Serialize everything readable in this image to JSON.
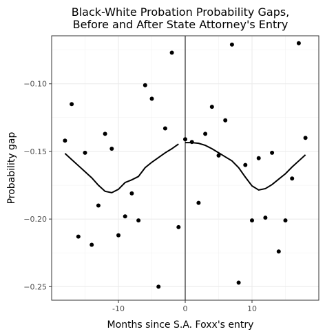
{
  "chart_data": {
    "type": "scatter",
    "title_line1": "Black-White Probation Probability Gaps,",
    "title_line2": "Before and After State Attorney's Entry",
    "xlabel": "Months since S.A. Foxx's entry",
    "ylabel": "Probability gap",
    "xlim": [
      -20,
      20
    ],
    "ylim": [
      -0.26,
      -0.0645
    ],
    "x_ticks": [
      -10,
      0,
      10
    ],
    "x_tick_labels": [
      "-10",
      "0",
      "10"
    ],
    "y_ticks": [
      -0.25,
      -0.2,
      -0.15,
      -0.1
    ],
    "y_tick_labels": [
      "−0.25",
      "−0.20",
      "−0.15",
      "−0.10"
    ],
    "grid": true,
    "vline_x": 0,
    "points": [
      {
        "x": -18,
        "y": -0.142
      },
      {
        "x": -17,
        "y": -0.115
      },
      {
        "x": -16,
        "y": -0.213
      },
      {
        "x": -15,
        "y": -0.151
      },
      {
        "x": -14,
        "y": -0.219
      },
      {
        "x": -13,
        "y": -0.19
      },
      {
        "x": -12,
        "y": -0.137
      },
      {
        "x": -11,
        "y": -0.148
      },
      {
        "x": -10,
        "y": -0.212
      },
      {
        "x": -9,
        "y": -0.198
      },
      {
        "x": -8,
        "y": -0.181
      },
      {
        "x": -7,
        "y": -0.201
      },
      {
        "x": -6,
        "y": -0.101
      },
      {
        "x": -5,
        "y": -0.111
      },
      {
        "x": -4,
        "y": -0.25
      },
      {
        "x": -3,
        "y": -0.133
      },
      {
        "x": -2,
        "y": -0.077
      },
      {
        "x": -1,
        "y": -0.206
      },
      {
        "x": 0,
        "y": -0.141
      },
      {
        "x": 1,
        "y": -0.143
      },
      {
        "x": 2,
        "y": -0.188
      },
      {
        "x": 3,
        "y": -0.137
      },
      {
        "x": 4,
        "y": -0.117
      },
      {
        "x": 5,
        "y": -0.153
      },
      {
        "x": 6,
        "y": -0.127
      },
      {
        "x": 7,
        "y": -0.071
      },
      {
        "x": 8,
        "y": -0.247
      },
      {
        "x": 9,
        "y": -0.16
      },
      {
        "x": 10,
        "y": -0.201
      },
      {
        "x": 11,
        "y": -0.155
      },
      {
        "x": 12,
        "y": -0.199
      },
      {
        "x": 13,
        "y": -0.151
      },
      {
        "x": 14,
        "y": -0.224
      },
      {
        "x": 15,
        "y": -0.201
      },
      {
        "x": 16,
        "y": -0.17
      },
      {
        "x": 17,
        "y": -0.07
      },
      {
        "x": 18,
        "y": -0.14
      }
    ],
    "fit_before": [
      {
        "x": -18,
        "y": -0.1515
      },
      {
        "x": -17,
        "y": -0.156
      },
      {
        "x": -16,
        "y": -0.1605
      },
      {
        "x": -15,
        "y": -0.165
      },
      {
        "x": -14,
        "y": -0.1695
      },
      {
        "x": -13,
        "y": -0.175
      },
      {
        "x": -12,
        "y": -0.1795
      },
      {
        "x": -11,
        "y": -0.1805
      },
      {
        "x": -10,
        "y": -0.178
      },
      {
        "x": -9,
        "y": -0.173
      },
      {
        "x": -8,
        "y": -0.171
      },
      {
        "x": -7,
        "y": -0.1685
      },
      {
        "x": -6,
        "y": -0.162
      },
      {
        "x": -5,
        "y": -0.158
      },
      {
        "x": -4,
        "y": -0.1545
      },
      {
        "x": -3,
        "y": -0.151
      },
      {
        "x": -2,
        "y": -0.148
      },
      {
        "x": -1,
        "y": -0.1445
      }
    ],
    "fit_after": [
      {
        "x": 0,
        "y": -0.1435
      },
      {
        "x": 1,
        "y": -0.1435
      },
      {
        "x": 2,
        "y": -0.144
      },
      {
        "x": 3,
        "y": -0.1455
      },
      {
        "x": 4,
        "y": -0.148
      },
      {
        "x": 5,
        "y": -0.151
      },
      {
        "x": 6,
        "y": -0.154
      },
      {
        "x": 7,
        "y": -0.157
      },
      {
        "x": 8,
        "y": -0.162
      },
      {
        "x": 9,
        "y": -0.169
      },
      {
        "x": 10,
        "y": -0.1755
      },
      {
        "x": 11,
        "y": -0.1785
      },
      {
        "x": 12,
        "y": -0.1775
      },
      {
        "x": 13,
        "y": -0.1745
      },
      {
        "x": 14,
        "y": -0.1705
      },
      {
        "x": 15,
        "y": -0.1665
      },
      {
        "x": 16,
        "y": -0.1615
      },
      {
        "x": 17,
        "y": -0.157
      },
      {
        "x": 18,
        "y": -0.1525
      }
    ]
  }
}
